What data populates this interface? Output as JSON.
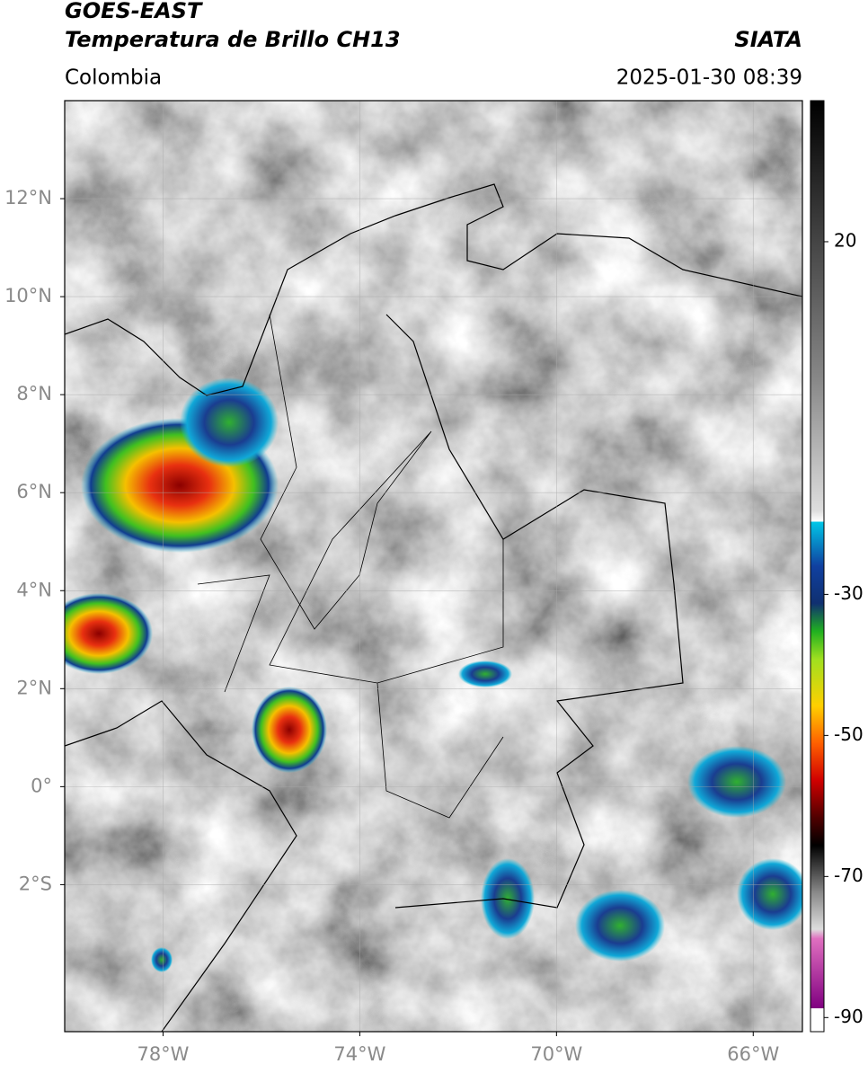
{
  "header": {
    "satellite": "GOES-EAST",
    "product": "Temperatura de Brillo CH13",
    "source": "SIATA",
    "region": "Colombia",
    "datetime": "2025-01-30 08:39"
  },
  "map": {
    "lonlim": [
      -80,
      -65
    ],
    "latlim": [
      -5,
      14
    ],
    "lonticks": [
      {
        "value": -78,
        "label": "78°W"
      },
      {
        "value": -74,
        "label": "74°W"
      },
      {
        "value": -70,
        "label": "70°W"
      },
      {
        "value": -66,
        "label": "66°W"
      }
    ],
    "latticks": [
      {
        "value": 12,
        "label": "12°N"
      },
      {
        "value": 10,
        "label": "10°N"
      },
      {
        "value": 8,
        "label": "8°N"
      },
      {
        "value": 6,
        "label": "6°N"
      },
      {
        "value": 4,
        "label": "4°N"
      },
      {
        "value": 2,
        "label": "2°N"
      },
      {
        "value": 0,
        "label": "0°"
      },
      {
        "value": -2,
        "label": "2°S"
      }
    ],
    "grid": true
  },
  "colorbar": {
    "clim": [
      -92,
      40
    ],
    "ticks": [
      20,
      -30,
      -50,
      -70,
      -90
    ]
  }
}
